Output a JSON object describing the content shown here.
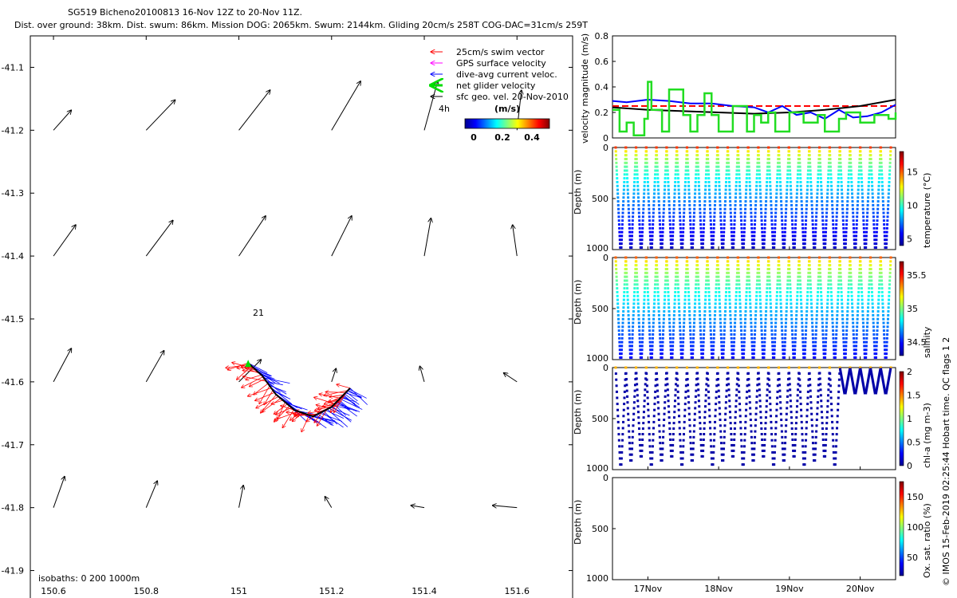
{
  "header": {
    "line1": "SG519 Bicheno20100813 16-Nov 12Z to 20-Nov 11Z.",
    "line2": "Dist. over ground: 38km. Dist. swum: 86km. Mission DOG: 2065km. Swum: 2144km. Gliding 20cm/s 258T COG-DAC=31cm/s 259T"
  },
  "footer_vertical": "© IMOS 15-Feb-2019 02:25:44 Hobart time. QC flags 1  2",
  "colors": {
    "swim": "#ff0000",
    "gps": "#ff00ff",
    "dac": "#0000ff",
    "net": "#00dd00",
    "geo": "#000000"
  },
  "chart_data": [
    {
      "type": "scatter",
      "title": "",
      "xlim": [
        150.55,
        151.72
      ],
      "ylim": [
        -41.95,
        -41.05
      ],
      "x_ticks": [
        150.6,
        150.8,
        151,
        151.2,
        151.4,
        151.6
      ],
      "x_tick_labels": [
        "150.6",
        "150.8",
        "151",
        "151.2",
        "151.4",
        "151.6"
      ],
      "y_ticks": [
        -41.1,
        -41.2,
        -41.3,
        -41.4,
        -41.5,
        -41.6,
        -41.7,
        -41.8,
        -41.9
      ],
      "y_tick_labels": [
        "-41.1",
        "-41.2",
        "-41.3",
        "-41.4",
        "-41.5",
        "-41.6",
        "-41.7",
        "-41.8",
        "-41.9"
      ],
      "legend": [
        {
          "label": "25cm/s swim vector",
          "color": "#ff0000"
        },
        {
          "label": "GPS surface velocity",
          "color": "#ff00ff"
        },
        {
          "label": "dive-avg current veloc.",
          "color": "#0000ff"
        },
        {
          "label": "net glider velocity",
          "color": "#00dd00"
        },
        {
          "label": "sfc geo. vel. 20-Nov-2010",
          "color": "#000000"
        }
      ],
      "legend_extra": "4h",
      "colorbar": {
        "unit": "(m/s)",
        "ticks": [
          "0",
          "0.2",
          "0.4"
        ],
        "range": [
          0,
          0.5
        ]
      },
      "annotations": [
        {
          "text": "21",
          "x": 151.03,
          "y": -41.495
        }
      ],
      "isobaths_label": "isobaths: 0    200  1000m",
      "geo_vectors": [
        {
          "x": 150.6,
          "y": -41.2,
          "u": 0.04,
          "v": 0.045
        },
        {
          "x": 150.8,
          "y": -41.2,
          "u": 0.065,
          "v": 0.068
        },
        {
          "x": 151.0,
          "y": -41.2,
          "u": 0.07,
          "v": 0.09
        },
        {
          "x": 151.2,
          "y": -41.2,
          "u": 0.065,
          "v": 0.11
        },
        {
          "x": 151.4,
          "y": -41.2,
          "u": 0.03,
          "v": 0.11
        },
        {
          "x": 151.6,
          "y": -41.2,
          "u": 0.01,
          "v": 0.09
        },
        {
          "x": 150.6,
          "y": -41.4,
          "u": 0.05,
          "v": 0.07
        },
        {
          "x": 150.8,
          "y": -41.4,
          "u": 0.06,
          "v": 0.08
        },
        {
          "x": 151.0,
          "y": -41.4,
          "u": 0.06,
          "v": 0.09
        },
        {
          "x": 151.2,
          "y": -41.4,
          "u": 0.045,
          "v": 0.09
        },
        {
          "x": 151.4,
          "y": -41.4,
          "u": 0.015,
          "v": 0.085
        },
        {
          "x": 151.6,
          "y": -41.4,
          "u": -0.01,
          "v": 0.07
        },
        {
          "x": 150.6,
          "y": -41.6,
          "u": 0.04,
          "v": 0.075
        },
        {
          "x": 150.8,
          "y": -41.6,
          "u": 0.04,
          "v": 0.07
        },
        {
          "x": 151.0,
          "y": -41.6,
          "u": 0.05,
          "v": 0.05
        },
        {
          "x": 151.2,
          "y": -41.6,
          "u": 0.01,
          "v": 0.03
        },
        {
          "x": 151.4,
          "y": -41.6,
          "u": -0.01,
          "v": 0.035
        },
        {
          "x": 151.6,
          "y": -41.6,
          "u": -0.03,
          "v": 0.02
        },
        {
          "x": 150.6,
          "y": -41.8,
          "u": 0.025,
          "v": 0.07
        },
        {
          "x": 150.8,
          "y": -41.8,
          "u": 0.025,
          "v": 0.06
        },
        {
          "x": 151.0,
          "y": -41.8,
          "u": 0.01,
          "v": 0.05
        },
        {
          "x": 151.2,
          "y": -41.8,
          "u": -0.015,
          "v": 0.025
        },
        {
          "x": 151.4,
          "y": -41.8,
          "u": -0.03,
          "v": 0.005
        },
        {
          "x": 151.6,
          "y": -41.8,
          "u": -0.055,
          "v": 0.005
        }
      ],
      "track": [
        {
          "x": 151.02,
          "y": -41.57
        },
        {
          "x": 151.05,
          "y": -41.59
        },
        {
          "x": 151.08,
          "y": -41.62
        },
        {
          "x": 151.12,
          "y": -41.645
        },
        {
          "x": 151.16,
          "y": -41.655
        },
        {
          "x": 151.2,
          "y": -41.64
        },
        {
          "x": 151.22,
          "y": -41.625
        },
        {
          "x": 151.24,
          "y": -41.61
        }
      ],
      "track_start": {
        "x": 151.02,
        "y": -41.57
      }
    },
    {
      "type": "line",
      "ylabel": "velocity magnitude (m/s)",
      "xlim": [
        0,
        4
      ],
      "ylim": [
        0,
        0.8
      ],
      "y_ticks": [
        0,
        0.2,
        0.4,
        0.6,
        0.8
      ],
      "y_tick_labels": [
        "0",
        "0.2",
        "0.4",
        "0.6",
        "0.8"
      ],
      "series": [
        {
          "color": "#ff0000",
          "dashed": true,
          "x": [
            0,
            4
          ],
          "y": [
            0.25,
            0.25
          ]
        },
        {
          "color": "#000000",
          "x": [
            0,
            0.5,
            1,
            1.5,
            2,
            2.5,
            3,
            3.5,
            4
          ],
          "y": [
            0.24,
            0.22,
            0.21,
            0.2,
            0.19,
            0.2,
            0.22,
            0.25,
            0.3
          ]
        },
        {
          "color": "#0000ff",
          "x": [
            0,
            0.2,
            0.5,
            0.8,
            1.1,
            1.4,
            1.7,
            2.0,
            2.2,
            2.4,
            2.6,
            2.8,
            3.0,
            3.2,
            3.4,
            3.6,
            3.8,
            4.0
          ],
          "y": [
            0.29,
            0.28,
            0.3,
            0.29,
            0.27,
            0.27,
            0.25,
            0.24,
            0.2,
            0.25,
            0.18,
            0.2,
            0.15,
            0.22,
            0.16,
            0.17,
            0.2,
            0.26
          ]
        },
        {
          "color": "#22dd22",
          "step": true,
          "x": [
            0,
            0.1,
            0.2,
            0.3,
            0.45,
            0.5,
            0.55,
            0.7,
            0.8,
            1.0,
            1.1,
            1.2,
            1.3,
            1.4,
            1.5,
            1.7,
            1.9,
            2.0,
            2.1,
            2.2,
            2.3,
            2.5,
            2.7,
            2.9,
            3.0,
            3.2,
            3.3,
            3.5,
            3.7,
            3.9,
            4.0
          ],
          "y": [
            0.22,
            0.05,
            0.12,
            0.02,
            0.15,
            0.44,
            0.22,
            0.05,
            0.38,
            0.18,
            0.05,
            0.18,
            0.35,
            0.18,
            0.05,
            0.25,
            0.05,
            0.18,
            0.12,
            0.2,
            0.05,
            0.2,
            0.12,
            0.18,
            0.05,
            0.15,
            0.2,
            0.12,
            0.18,
            0.15,
            0.2
          ]
        }
      ]
    },
    {
      "type": "scatter",
      "ylabel": "Depth (m)",
      "cbar_label": "temperature (°C)",
      "yticks": [
        0,
        500,
        1000
      ],
      "cbar_ticks": [
        5,
        10,
        15
      ],
      "cbar_range": [
        4,
        18
      ],
      "dives": 27,
      "ylim": [
        1000,
        0
      ]
    },
    {
      "type": "scatter",
      "ylabel": "Depth (m)",
      "cbar_label": "salinity",
      "yticks": [
        0,
        500,
        1000
      ],
      "cbar_ticks": [
        34.5,
        35,
        35.5
      ],
      "cbar_range": [
        34.3,
        35.7
      ],
      "dives": 27,
      "ylim": [
        1000,
        0
      ]
    },
    {
      "type": "scatter",
      "ylabel": "Depth (m)",
      "cbar_label": "chl-a (mg m-3)",
      "yticks": [
        0,
        500,
        1000
      ],
      "cbar_ticks": [
        0,
        0.5,
        1,
        1.5,
        2
      ],
      "cbar_range": [
        0,
        2
      ],
      "dives": 27,
      "ylim": [
        1000,
        0
      ]
    },
    {
      "type": "scatter",
      "ylabel": "Depth (m)",
      "cbar_label": "Ox. sat. ratio (%)",
      "yticks": [
        0,
        500,
        1000
      ],
      "cbar_ticks": [
        50,
        100,
        150
      ],
      "cbar_range": [
        20,
        175
      ],
      "ylim": [
        1000,
        0
      ],
      "x_tick_labels": [
        "17Nov",
        "18Nov",
        "19Nov",
        "20Nov"
      ],
      "x_ticks": [
        0.5,
        1.5,
        2.5,
        3.5
      ]
    }
  ]
}
